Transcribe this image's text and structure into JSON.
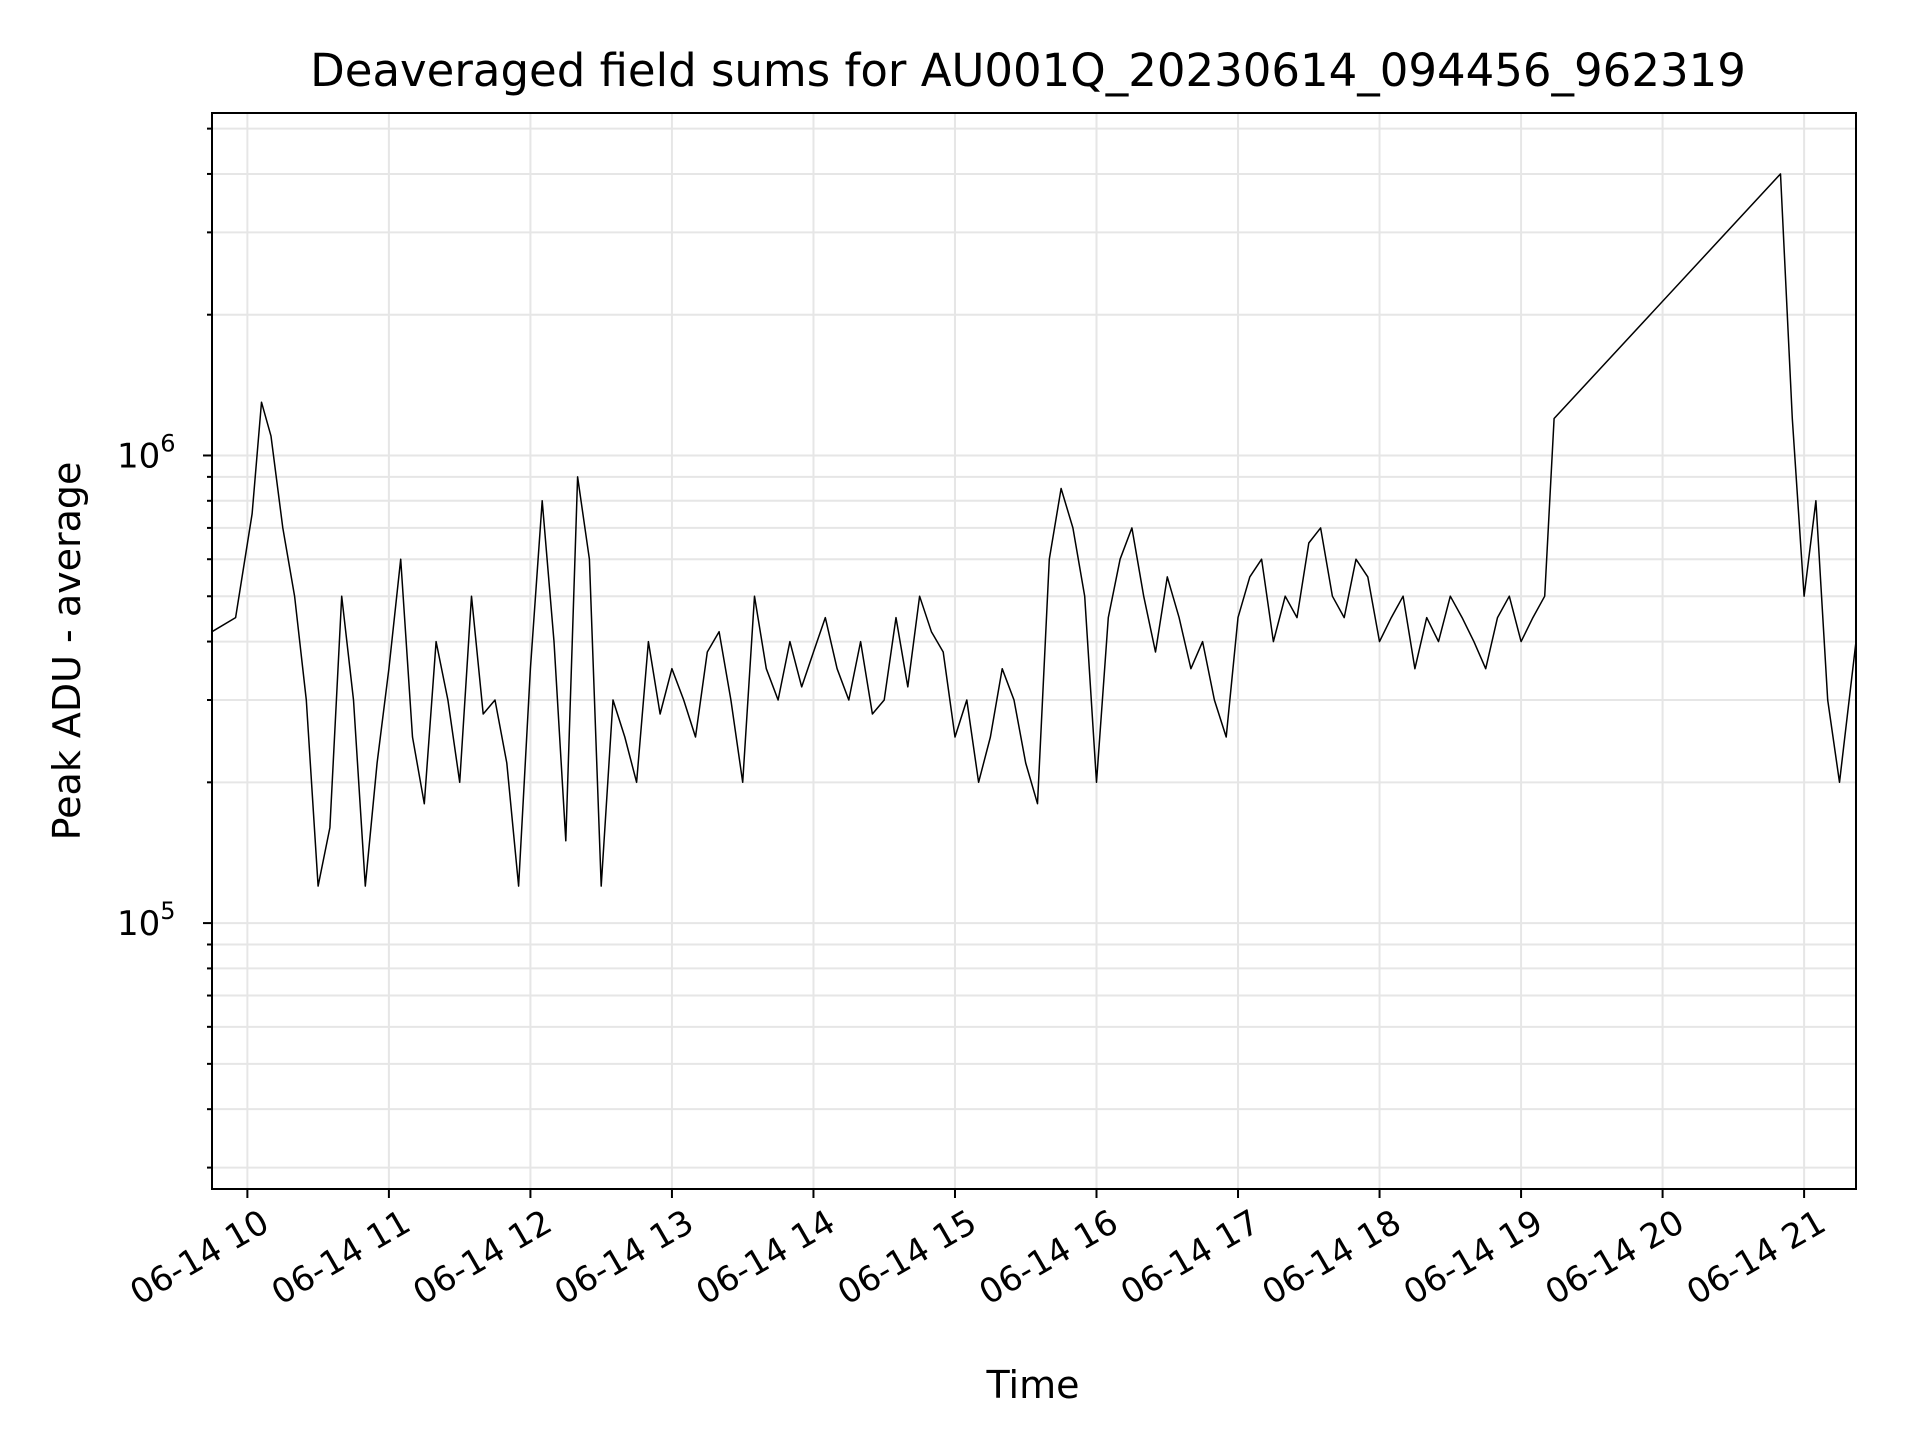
{
  "chart_data": {
    "type": "line",
    "title": "Deaveraged field sums for AU001Q_20230614_094456_962319",
    "xlabel": "Time",
    "ylabel": "Peak ADU - average",
    "x_scale": "time",
    "y_scale": "log",
    "xlim": [
      "06-14 09:45",
      "06-14 21:22"
    ],
    "ylim": [
      27000,
      5400000
    ],
    "x_ticks": [
      "06-14 10",
      "06-14 11",
      "06-14 12",
      "06-14 13",
      "06-14 14",
      "06-14 15",
      "06-14 16",
      "06-14 17",
      "06-14 18",
      "06-14 19",
      "06-14 20",
      "06-14 21"
    ],
    "y_ticks": [
      {
        "value": 100000,
        "base": "10",
        "exp": "5"
      },
      {
        "value": 1000000,
        "base": "10",
        "exp": "6"
      }
    ],
    "grid": true,
    "line_color": "#000000",
    "grid_color": "#e6e6e6",
    "series": [
      {
        "x": [
          "06-14 09:45",
          "06-14 09:55",
          "06-14 10:02",
          "06-14 10:06",
          "06-14 10:10",
          "06-14 10:15",
          "06-14 10:20",
          "06-14 10:25",
          "06-14 10:30",
          "06-14 10:35",
          "06-14 10:40",
          "06-14 10:45",
          "06-14 10:50",
          "06-14 10:55",
          "06-14 11:00",
          "06-14 11:05",
          "06-14 11:10",
          "06-14 11:15",
          "06-14 11:20",
          "06-14 11:25",
          "06-14 11:30",
          "06-14 11:35",
          "06-14 11:40",
          "06-14 11:45",
          "06-14 11:50",
          "06-14 11:55",
          "06-14 12:00",
          "06-14 12:05",
          "06-14 12:10",
          "06-14 12:15",
          "06-14 12:20",
          "06-14 12:25",
          "06-14 12:30",
          "06-14 12:35",
          "06-14 12:40",
          "06-14 12:45",
          "06-14 12:50",
          "06-14 12:55",
          "06-14 13:00",
          "06-14 13:05",
          "06-14 13:10",
          "06-14 13:15",
          "06-14 13:20",
          "06-14 13:25",
          "06-14 13:30",
          "06-14 13:35",
          "06-14 13:40",
          "06-14 13:45",
          "06-14 13:50",
          "06-14 13:55",
          "06-14 14:00",
          "06-14 14:05",
          "06-14 14:10",
          "06-14 14:15",
          "06-14 14:20",
          "06-14 14:25",
          "06-14 14:30",
          "06-14 14:35",
          "06-14 14:40",
          "06-14 14:45",
          "06-14 14:50",
          "06-14 14:55",
          "06-14 15:00",
          "06-14 15:05",
          "06-14 15:10",
          "06-14 15:15",
          "06-14 15:20",
          "06-14 15:25",
          "06-14 15:30",
          "06-14 15:35",
          "06-14 15:40",
          "06-14 15:45",
          "06-14 15:50",
          "06-14 15:55",
          "06-14 16:00",
          "06-14 16:05",
          "06-14 16:10",
          "06-14 16:15",
          "06-14 16:20",
          "06-14 16:25",
          "06-14 16:30",
          "06-14 16:35",
          "06-14 16:40",
          "06-14 16:45",
          "06-14 16:50",
          "06-14 16:55",
          "06-14 17:00",
          "06-14 17:05",
          "06-14 17:10",
          "06-14 17:15",
          "06-14 17:20",
          "06-14 17:25",
          "06-14 17:30",
          "06-14 17:35",
          "06-14 17:40",
          "06-14 17:45",
          "06-14 17:50",
          "06-14 17:55",
          "06-14 18:00",
          "06-14 18:05",
          "06-14 18:10",
          "06-14 18:15",
          "06-14 18:20",
          "06-14 18:25",
          "06-14 18:30",
          "06-14 18:35",
          "06-14 18:40",
          "06-14 18:45",
          "06-14 18:50",
          "06-14 18:55",
          "06-14 19:00",
          "06-14 19:05",
          "06-14 19:10",
          "06-14 19:14",
          "06-14 20:50",
          "06-14 20:55",
          "06-14 21:00",
          "06-14 21:05",
          "06-14 21:10",
          "06-14 21:15",
          "06-14 21:22"
        ],
        "y": [
          420000,
          450000,
          750000,
          1300000,
          1100000,
          700000,
          500000,
          300000,
          120000,
          160000,
          500000,
          300000,
          120000,
          220000,
          350000,
          600000,
          250000,
          180000,
          400000,
          300000,
          200000,
          500000,
          280000,
          300000,
          220000,
          120000,
          350000,
          800000,
          400000,
          150000,
          900000,
          600000,
          120000,
          300000,
          250000,
          200000,
          400000,
          280000,
          350000,
          300000,
          250000,
          380000,
          420000,
          300000,
          200000,
          500000,
          350000,
          300000,
          400000,
          320000,
          380000,
          450000,
          350000,
          300000,
          400000,
          280000,
          300000,
          450000,
          320000,
          500000,
          420000,
          380000,
          250000,
          300000,
          200000,
          250000,
          350000,
          300000,
          220000,
          180000,
          600000,
          850000,
          700000,
          500000,
          200000,
          450000,
          600000,
          700000,
          500000,
          380000,
          550000,
          450000,
          350000,
          400000,
          300000,
          250000,
          450000,
          550000,
          600000,
          400000,
          500000,
          450000,
          650000,
          700000,
          500000,
          450000,
          600000,
          550000,
          400000,
          450000,
          500000,
          350000,
          450000,
          400000,
          500000,
          450000,
          400000,
          350000,
          450000,
          500000,
          400000,
          450000,
          500000,
          1200000,
          4000000,
          1200000,
          500000,
          800000,
          300000,
          200000,
          400000
        ]
      }
    ]
  }
}
